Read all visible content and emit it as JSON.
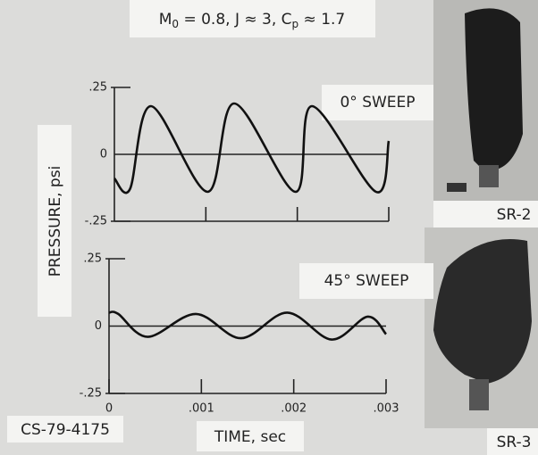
{
  "figure": {
    "header": [
      "M",
      "0",
      " = 0.8,  J ≈ 3,  C",
      "p",
      " ≈ 1.7"
    ],
    "y_label": "PRESSURE, psi",
    "x_label": "TIME, sec",
    "code": "CS-79-4175",
    "photos": [
      "SR-2",
      "SR-3"
    ]
  },
  "chart_data": [
    {
      "type": "line",
      "annotation": "0° SWEEP",
      "x": [
        0,
        0.00017,
        0.0004,
        0.00102,
        0.00131,
        0.00198,
        0.00216,
        0.00286,
        0.003
      ],
      "values": [
        -0.09,
        -0.13,
        0.18,
        -0.14,
        0.19,
        -0.14,
        0.18,
        -0.14,
        0.05
      ],
      "xlim": [
        0,
        0.003
      ],
      "ylim": [
        -0.25,
        0.25
      ],
      "xticks": [
        0.001,
        0.002,
        0.003
      ],
      "yticks": [
        {
          "value": 0.25,
          "label": ".25"
        },
        0,
        {
          "value": -0.25,
          "label": "-.25"
        }
      ],
      "zero_line": true,
      "color": "#111111"
    },
    {
      "type": "line",
      "annotation": "45° SWEEP",
      "x": [
        0,
        0.0001,
        0.00042,
        0.00094,
        0.00143,
        0.00193,
        0.00241,
        0.0028,
        0.003
      ],
      "values": [
        0.05,
        0.045,
        -0.04,
        0.045,
        -0.045,
        0.05,
        -0.05,
        0.035,
        -0.03
      ],
      "xlim": [
        0,
        0.003
      ],
      "ylim": [
        -0.25,
        0.25
      ],
      "xticks": [
        0,
        {
          "value": 0.001,
          "label": ".001"
        },
        {
          "value": 0.002,
          "label": ".002"
        },
        {
          "value": 0.003,
          "label": ".003"
        }
      ],
      "yticks": [
        {
          "value": 0.25,
          "label": ".25"
        },
        0,
        {
          "value": -0.25,
          "label": "-.25"
        }
      ],
      "zero_line": true,
      "color": "#111111"
    }
  ]
}
